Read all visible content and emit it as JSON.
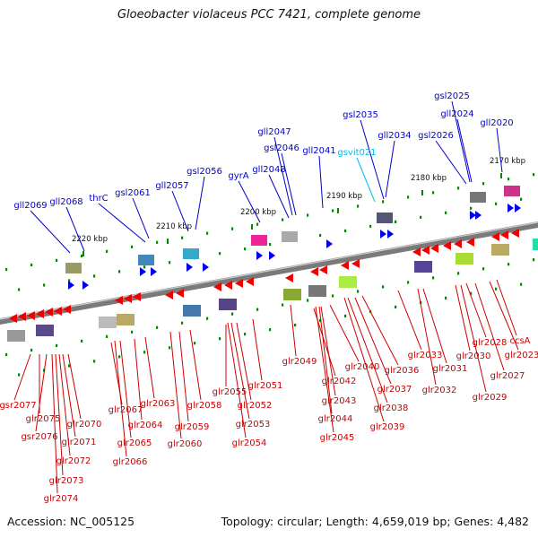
{
  "title": "Gloeobacter violaceus PCC 7421, complete genome",
  "accession": "Accession: NC_005125",
  "topology": "Topology: circular; Length: 4,659,019 bp; Genes: 4,482",
  "colors": {
    "forward_gene": "#0000ee",
    "reverse_gene": "#ee0000",
    "forward_label": "#0000cc",
    "reverse_label": "#cc0000",
    "rna_label": "#00bbee",
    "backbone": "#888888",
    "tick": "#008800"
  },
  "kbp_labels": [
    "2170 kbp",
    "2180 kbp",
    "2190 kbp",
    "2200 kbp",
    "2210 kbp",
    "2220 kbp"
  ],
  "forward_labels": [
    "gll2069",
    "gll2068",
    "thrC",
    "gsl2061",
    "gll2057",
    "gsl2056",
    "gyrA",
    "gll2048",
    "gll2047",
    "gsl2046",
    "gll2041",
    "gsl2035",
    "gll2034",
    "gsl2026",
    "gsl2025",
    "gll2024",
    "gll2020"
  ],
  "rna_labels": [
    "gsvit021"
  ],
  "reverse_labels": [
    "gsr2077",
    "glr2075",
    "gsr2076",
    "glr2070",
    "glr2071",
    "glr2072",
    "glr2073",
    "glr2074",
    "glr2067",
    "glr2065",
    "glr2066",
    "glr2064",
    "glr2063",
    "glr2060",
    "glr2059",
    "glr2058",
    "glr2055",
    "glr2052",
    "glr2053",
    "glr2054",
    "glr2051",
    "glr2049",
    "glr2042",
    "glr2043",
    "glr2044",
    "glr2045",
    "glr2040",
    "glr2037",
    "glr2038",
    "glr2039",
    "glr2036",
    "glr2033",
    "glr2032",
    "glr2031",
    "glr2030",
    "glr2028",
    "glr2029",
    "glr2027",
    "ccsA",
    "glr2023"
  ]
}
